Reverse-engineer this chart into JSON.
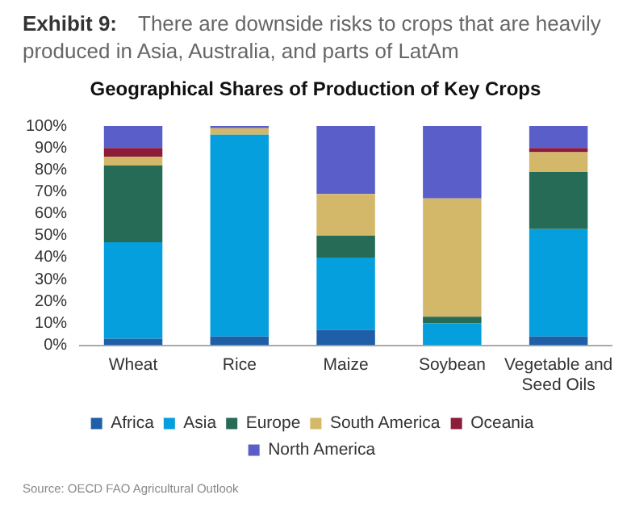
{
  "chart_data": {
    "type": "bar",
    "stacked": true,
    "subtitle": "Exhibit 9: There are downside risks to crops that are heavily produced in Asia, Australia, and parts of LatAm",
    "title": "Geographical Shares of Production of Key Crops",
    "categories": [
      "Wheat",
      "Rice",
      "Maize",
      "Soybean",
      "Vegetable and Seed Oils"
    ],
    "series": [
      {
        "name": "Africa",
        "color": "#1f5fa8",
        "values": [
          3,
          4,
          7,
          0,
          4
        ]
      },
      {
        "name": "Asia",
        "color": "#049fdc",
        "values": [
          44,
          92,
          33,
          10,
          49
        ]
      },
      {
        "name": "Europe",
        "color": "#256b55",
        "values": [
          35,
          0,
          10,
          3,
          26
        ]
      },
      {
        "name": "South America",
        "color": "#d4b86a",
        "values": [
          4,
          3,
          19,
          54,
          9
        ]
      },
      {
        "name": "Oceania",
        "color": "#8b1c3a",
        "values": [
          4,
          0,
          0,
          0,
          2
        ]
      },
      {
        "name": "North America",
        "color": "#5a5ec8",
        "values": [
          10,
          1,
          31,
          33,
          10
        ]
      }
    ],
    "ylim": [
      0,
      100
    ],
    "yticks": [
      {
        "value": 0,
        "label": "0%"
      },
      {
        "value": 10,
        "label": "10%"
      },
      {
        "value": 20,
        "label": "20%"
      },
      {
        "value": 30,
        "label": "30%"
      },
      {
        "value": 40,
        "label": "40%"
      },
      {
        "value": 50,
        "label": "50%"
      },
      {
        "value": 60,
        "label": "60%"
      },
      {
        "value": 70,
        "label": "70%"
      },
      {
        "value": 80,
        "label": "80%"
      },
      {
        "value": 90,
        "label": "90%"
      },
      {
        "value": 100,
        "label": "100%"
      }
    ],
    "grid": false,
    "legend": "bottom",
    "annotations": [
      "Source: OECD FAO Agricultural Outlook"
    ]
  }
}
